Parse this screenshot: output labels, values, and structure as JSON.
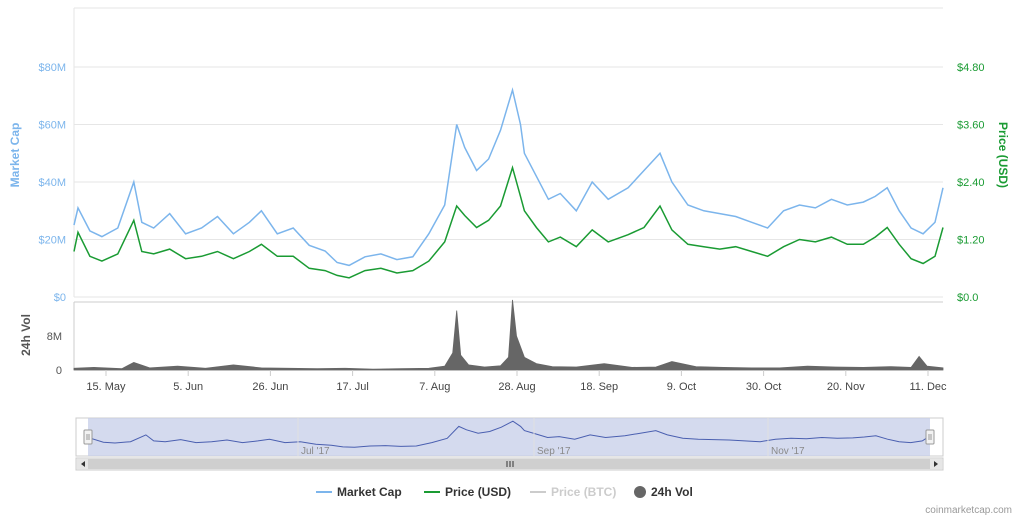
{
  "chart_data": {
    "type": "line",
    "credit": "coinmarketcap.com",
    "colors": {
      "market_cap": "#7cb5ec",
      "price_usd": "#1a9b33",
      "price_btc": "#cccccc",
      "volume": "#666666",
      "navigator_fill": "#c5cde8",
      "navigator_line": "#4a5fb0"
    },
    "axes": {
      "left": {
        "title": "Market Cap",
        "ticks": [
          "$0",
          "$20M",
          "$40M",
          "$60M",
          "$80M"
        ],
        "ylim": [
          0,
          80000000
        ]
      },
      "right": {
        "title": "Price (USD)",
        "ticks": [
          "$0.0",
          "$1.20",
          "$2.40",
          "$3.60",
          "$4.80"
        ],
        "ylim": [
          0,
          4.8
        ]
      },
      "volume": {
        "title": "24h Vol",
        "ticks": [
          "0",
          "8M"
        ],
        "ylim": [
          0,
          16000000
        ]
      },
      "x": {
        "ticks": [
          "15. May",
          "5. Jun",
          "26. Jun",
          "17. Jul",
          "7. Aug",
          "28. Aug",
          "18. Sep",
          "9. Oct",
          "30. Oct",
          "20. Nov",
          "11. Dec"
        ],
        "range": [
          "2017-05-09",
          "2017-12-13"
        ]
      },
      "navigator_ticks": [
        "Jul '17",
        "Sep '17",
        "Nov '17"
      ]
    },
    "series": [
      {
        "name": "Market Cap",
        "x": [
          "2017-05-09",
          "2017-05-10",
          "2017-05-13",
          "2017-05-16",
          "2017-05-20",
          "2017-05-24",
          "2017-05-26",
          "2017-05-29",
          "2017-06-02",
          "2017-06-06",
          "2017-06-10",
          "2017-06-14",
          "2017-06-18",
          "2017-06-22",
          "2017-06-25",
          "2017-06-29",
          "2017-07-03",
          "2017-07-07",
          "2017-07-11",
          "2017-07-14",
          "2017-07-17",
          "2017-07-21",
          "2017-07-25",
          "2017-07-29",
          "2017-08-02",
          "2017-08-06",
          "2017-08-10",
          "2017-08-13",
          "2017-08-15",
          "2017-08-18",
          "2017-08-21",
          "2017-08-24",
          "2017-08-27",
          "2017-08-29",
          "2017-08-30",
          "2017-09-02",
          "2017-09-05",
          "2017-09-08",
          "2017-09-12",
          "2017-09-16",
          "2017-09-20",
          "2017-09-25",
          "2017-09-29",
          "2017-10-03",
          "2017-10-06",
          "2017-10-10",
          "2017-10-14",
          "2017-10-18",
          "2017-10-22",
          "2017-10-26",
          "2017-10-30",
          "2017-11-03",
          "2017-11-07",
          "2017-11-11",
          "2017-11-15",
          "2017-11-19",
          "2017-11-23",
          "2017-11-26",
          "2017-11-29",
          "2017-12-02",
          "2017-12-05",
          "2017-12-08",
          "2017-12-11",
          "2017-12-13"
        ],
        "values": [
          25000000,
          31000000,
          23000000,
          21000000,
          24000000,
          40000000,
          26000000,
          24000000,
          29000000,
          22000000,
          24000000,
          28000000,
          22000000,
          26000000,
          30000000,
          22000000,
          24000000,
          18000000,
          16000000,
          12000000,
          11000000,
          14000000,
          15000000,
          13000000,
          14000000,
          22000000,
          32000000,
          60000000,
          52000000,
          44000000,
          48000000,
          58000000,
          72000000,
          60000000,
          50000000,
          42000000,
          34000000,
          36000000,
          30000000,
          40000000,
          34000000,
          38000000,
          44000000,
          50000000,
          40000000,
          32000000,
          30000000,
          29000000,
          28000000,
          26000000,
          24000000,
          30000000,
          32000000,
          31000000,
          34000000,
          32000000,
          33000000,
          35000000,
          38000000,
          30000000,
          24000000,
          22000000,
          26000000,
          38000000
        ]
      },
      {
        "name": "Price (USD)",
        "x": [
          "2017-05-09",
          "2017-05-10",
          "2017-05-13",
          "2017-05-16",
          "2017-05-20",
          "2017-05-24",
          "2017-05-26",
          "2017-05-29",
          "2017-06-02",
          "2017-06-06",
          "2017-06-10",
          "2017-06-14",
          "2017-06-18",
          "2017-06-22",
          "2017-06-25",
          "2017-06-29",
          "2017-07-03",
          "2017-07-07",
          "2017-07-11",
          "2017-07-14",
          "2017-07-17",
          "2017-07-21",
          "2017-07-25",
          "2017-07-29",
          "2017-08-02",
          "2017-08-06",
          "2017-08-10",
          "2017-08-13",
          "2017-08-15",
          "2017-08-18",
          "2017-08-21",
          "2017-08-24",
          "2017-08-27",
          "2017-08-29",
          "2017-08-30",
          "2017-09-02",
          "2017-09-05",
          "2017-09-08",
          "2017-09-12",
          "2017-09-16",
          "2017-09-20",
          "2017-09-25",
          "2017-09-29",
          "2017-10-03",
          "2017-10-06",
          "2017-10-10",
          "2017-10-14",
          "2017-10-18",
          "2017-10-22",
          "2017-10-26",
          "2017-10-30",
          "2017-11-03",
          "2017-11-07",
          "2017-11-11",
          "2017-11-15",
          "2017-11-19",
          "2017-11-23",
          "2017-11-26",
          "2017-11-29",
          "2017-12-02",
          "2017-12-05",
          "2017-12-08",
          "2017-12-11",
          "2017-12-13"
        ],
        "values": [
          0.95,
          1.35,
          0.85,
          0.75,
          0.9,
          1.6,
          0.95,
          0.9,
          1.0,
          0.8,
          0.85,
          0.95,
          0.8,
          0.95,
          1.1,
          0.85,
          0.85,
          0.6,
          0.55,
          0.45,
          0.4,
          0.55,
          0.6,
          0.5,
          0.55,
          0.75,
          1.15,
          1.9,
          1.7,
          1.45,
          1.6,
          1.9,
          2.7,
          2.1,
          1.8,
          1.45,
          1.15,
          1.25,
          1.05,
          1.4,
          1.15,
          1.3,
          1.45,
          1.9,
          1.4,
          1.1,
          1.05,
          1.0,
          1.05,
          0.95,
          0.85,
          1.05,
          1.2,
          1.15,
          1.25,
          1.1,
          1.1,
          1.25,
          1.45,
          1.1,
          0.8,
          0.7,
          0.85,
          1.45
        ]
      },
      {
        "name": "Price (BTC)",
        "visible": false
      },
      {
        "name": "24h Vol",
        "type": "area",
        "x": [
          "2017-05-09",
          "2017-05-14",
          "2017-05-21",
          "2017-05-24",
          "2017-05-28",
          "2017-06-04",
          "2017-06-11",
          "2017-06-18",
          "2017-06-25",
          "2017-07-02",
          "2017-07-09",
          "2017-07-16",
          "2017-07-23",
          "2017-07-30",
          "2017-08-06",
          "2017-08-10",
          "2017-08-12",
          "2017-08-13",
          "2017-08-14",
          "2017-08-16",
          "2017-08-20",
          "2017-08-24",
          "2017-08-26",
          "2017-08-27",
          "2017-08-28",
          "2017-08-30",
          "2017-09-02",
          "2017-09-06",
          "2017-09-12",
          "2017-09-19",
          "2017-09-26",
          "2017-10-02",
          "2017-10-06",
          "2017-10-12",
          "2017-10-19",
          "2017-10-26",
          "2017-11-02",
          "2017-11-09",
          "2017-11-16",
          "2017-11-23",
          "2017-11-30",
          "2017-12-05",
          "2017-12-07",
          "2017-12-09",
          "2017-12-13"
        ],
        "values": [
          400000,
          600000,
          300000,
          1800000,
          500000,
          900000,
          400000,
          1200000,
          500000,
          400000,
          300000,
          400000,
          200000,
          300000,
          400000,
          900000,
          4000000,
          14000000,
          3500000,
          1200000,
          700000,
          1000000,
          3000000,
          16500000,
          8000000,
          3000000,
          1500000,
          800000,
          700000,
          1500000,
          600000,
          700000,
          2000000,
          800000,
          600000,
          500000,
          500000,
          900000,
          700000,
          600000,
          800000,
          600000,
          3200000,
          900000,
          500000
        ]
      }
    ],
    "legend": [
      "Market Cap",
      "Price (USD)",
      "Price (BTC)",
      "24h Vol"
    ],
    "legend_placement": "bottom-center",
    "grid": true
  }
}
